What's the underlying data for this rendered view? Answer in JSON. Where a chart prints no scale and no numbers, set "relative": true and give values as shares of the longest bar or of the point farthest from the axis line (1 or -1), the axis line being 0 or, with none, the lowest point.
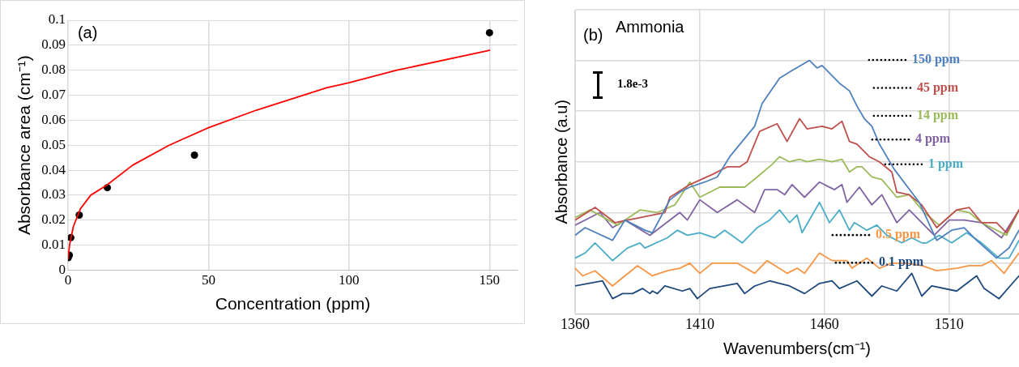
{
  "chart_data": [
    {
      "type": "scatter",
      "xlabel": "Concentration (ppm)",
      "ylabel": "Absorbance area (cm⁻¹)",
      "xlim": [
        0,
        160
      ],
      "ylim": [
        0,
        0.1
      ],
      "xticks": [
        0,
        50,
        100,
        150
      ],
      "yticks": [
        0,
        0.01,
        0.02,
        0.03,
        0.04,
        0.05,
        0.06,
        0.07,
        0.08,
        0.09,
        0.1
      ],
      "grid": true,
      "annotations": [
        "(a)"
      ],
      "series": [
        {
          "type": "scatter",
          "marker": "circle",
          "color": "#000000",
          "x": [
            0.1,
            0.5,
            1,
            4,
            14,
            45,
            150
          ],
          "values": [
            0.005,
            0.006,
            0.013,
            0.022,
            0.033,
            0.046,
            0.095
          ]
        },
        {
          "type": "line",
          "marker": "none",
          "color": "#ff0000",
          "x": [
            0,
            0.6,
            1.9,
            4.4,
            8.1,
            13.8,
            23,
            36,
            50,
            67,
            92,
            100,
            117,
            150
          ],
          "values": [
            0.0046,
            0.0103,
            0.0174,
            0.0245,
            0.03,
            0.034,
            0.042,
            0.05,
            0.057,
            0.064,
            0.073,
            0.075,
            0.08,
            0.088
          ]
        }
      ]
    },
    {
      "type": "line",
      "title": "Ammonia",
      "xlabel": "Wavenumbers(cm⁻¹)",
      "ylabel": "Absorbance (a.u)",
      "xlim": [
        1360,
        1538
      ],
      "xticks": [
        1360,
        1410,
        1460,
        1510
      ],
      "relative": true,
      "grid": true,
      "marker": "none",
      "annotations": [
        "(b)",
        "1.8e-3"
      ],
      "series": [
        {
          "name": "150 ppm",
          "color": "#4f81bd",
          "x": [
            1360,
            1364,
            1375,
            1380,
            1388,
            1391,
            1398,
            1402,
            1406,
            1412,
            1417,
            1422,
            1427,
            1432,
            1435,
            1442,
            1447,
            1454,
            1457,
            1459,
            1466,
            1470,
            1473,
            1476,
            1479,
            1482,
            1488,
            1498,
            1505,
            1511,
            1516,
            1521,
            1529,
            1534,
            1538
          ],
          "values": [
            0.31,
            0.34,
            0.29,
            0.37,
            0.33,
            0.32,
            0.45,
            0.48,
            0.5,
            0.52,
            0.54,
            0.62,
            0.68,
            0.74,
            0.83,
            0.93,
            0.96,
            1.0,
            0.97,
            0.98,
            0.91,
            0.88,
            0.82,
            0.77,
            0.74,
            0.67,
            0.57,
            0.44,
            0.29,
            0.33,
            0.34,
            0.29,
            0.22,
            0.26,
            0.33
          ]
        },
        {
          "name": "45 ppm",
          "color": "#c0504d",
          "x": [
            1360,
            1368,
            1376,
            1386,
            1396,
            1398,
            1406,
            1415,
            1421,
            1426,
            1429,
            1434,
            1441,
            1445,
            1450,
            1453,
            1459,
            1463,
            1467,
            1470,
            1473,
            1478,
            1482,
            1487,
            1489,
            1494,
            1499,
            1505,
            1513,
            1518,
            1523,
            1529,
            1533,
            1538
          ],
          "values": [
            0.37,
            0.42,
            0.36,
            0.38,
            0.4,
            0.46,
            0.51,
            0.55,
            0.58,
            0.58,
            0.6,
            0.72,
            0.75,
            0.68,
            0.77,
            0.73,
            0.74,
            0.73,
            0.76,
            0.68,
            0.67,
            0.62,
            0.6,
            0.56,
            0.48,
            0.47,
            0.43,
            0.34,
            0.41,
            0.42,
            0.36,
            0.36,
            0.32,
            0.41
          ]
        },
        {
          "name": "14 ppm",
          "color": "#9bbb59",
          "x": [
            1360,
            1366,
            1377,
            1386,
            1393,
            1400,
            1406,
            1410,
            1418,
            1428,
            1433,
            1439,
            1442,
            1446,
            1450,
            1453,
            1458,
            1463,
            1467,
            1470,
            1473,
            1475,
            1479,
            1483,
            1489,
            1494,
            1500,
            1506,
            1513,
            1518,
            1523,
            1533,
            1538
          ],
          "values": [
            0.38,
            0.41,
            0.35,
            0.41,
            0.4,
            0.43,
            0.52,
            0.46,
            0.5,
            0.5,
            0.54,
            0.59,
            0.62,
            0.6,
            0.61,
            0.6,
            0.61,
            0.6,
            0.61,
            0.56,
            0.58,
            0.58,
            0.54,
            0.53,
            0.46,
            0.47,
            0.4,
            0.35,
            0.41,
            0.4,
            0.36,
            0.31,
            0.41
          ]
        },
        {
          "name": "4 ppm",
          "color": "#8064a2",
          "x": [
            1360,
            1370,
            1375,
            1380,
            1390,
            1402,
            1405,
            1410,
            1417,
            1425,
            1432,
            1436,
            1441,
            1444,
            1447,
            1452,
            1458,
            1464,
            1467,
            1469,
            1474,
            1479,
            1483,
            1489,
            1494,
            1504,
            1510,
            1516,
            1523,
            1531,
            1538
          ],
          "values": [
            0.35,
            0.4,
            0.34,
            0.37,
            0.31,
            0.4,
            0.37,
            0.45,
            0.4,
            0.45,
            0.4,
            0.49,
            0.49,
            0.47,
            0.51,
            0.46,
            0.52,
            0.49,
            0.51,
            0.44,
            0.5,
            0.43,
            0.47,
            0.36,
            0.41,
            0.31,
            0.37,
            0.37,
            0.36,
            0.3,
            0.41
          ]
        },
        {
          "name": "1 ppm",
          "color": "#4bacc6",
          "x": [
            1360,
            1364,
            1368,
            1375,
            1381,
            1386,
            1388,
            1397,
            1401,
            1405,
            1410,
            1416,
            1420,
            1427,
            1433,
            1438,
            1442,
            1446,
            1449,
            1451,
            1458,
            1462,
            1466,
            1470,
            1472,
            1477,
            1481,
            1485,
            1491,
            1495,
            1499,
            1501,
            1506,
            1511,
            1517,
            1523,
            1530,
            1534,
            1538
          ],
          "values": [
            0.22,
            0.24,
            0.28,
            0.21,
            0.26,
            0.28,
            0.26,
            0.3,
            0.33,
            0.31,
            0.32,
            0.3,
            0.33,
            0.28,
            0.34,
            0.37,
            0.41,
            0.36,
            0.39,
            0.32,
            0.44,
            0.36,
            0.41,
            0.33,
            0.36,
            0.33,
            0.35,
            0.31,
            0.28,
            0.3,
            0.28,
            0.28,
            0.31,
            0.28,
            0.32,
            0.28,
            0.22,
            0.22,
            0.29
          ]
        },
        {
          "name": "0.5 ppm",
          "color": "#f79646",
          "x": [
            1360,
            1363,
            1368,
            1375,
            1385,
            1391,
            1397,
            1402,
            1406,
            1410,
            1415,
            1425,
            1432,
            1437,
            1445,
            1449,
            1452,
            1458,
            1463,
            1469,
            1471,
            1477,
            1482,
            1487,
            1493,
            1499,
            1505,
            1513,
            1518,
            1523,
            1527,
            1532,
            1538
          ],
          "values": [
            0.18,
            0.15,
            0.17,
            0.11,
            0.19,
            0.15,
            0.17,
            0.18,
            0.2,
            0.16,
            0.2,
            0.2,
            0.16,
            0.21,
            0.16,
            0.18,
            0.16,
            0.24,
            0.21,
            0.21,
            0.18,
            0.22,
            0.18,
            0.2,
            0.2,
            0.19,
            0.17,
            0.18,
            0.19,
            0.19,
            0.21,
            0.16,
            0.24
          ]
        },
        {
          "name": "0.1 ppm",
          "color": "#1f497d",
          "x": [
            1360,
            1371,
            1375,
            1379,
            1383,
            1387,
            1390,
            1391,
            1393,
            1396,
            1403,
            1406,
            1409,
            1414,
            1425,
            1428,
            1432,
            1438,
            1442,
            1446,
            1452,
            1458,
            1463,
            1466,
            1473,
            1479,
            1483,
            1489,
            1495,
            1499,
            1503,
            1513,
            1521,
            1524,
            1530,
            1538
          ],
          "values": [
            0.11,
            0.13,
            0.06,
            0.08,
            0.08,
            0.1,
            0.08,
            0.09,
            0.08,
            0.11,
            0.09,
            0.1,
            0.06,
            0.1,
            0.12,
            0.08,
            0.11,
            0.13,
            0.12,
            0.11,
            0.08,
            0.12,
            0.13,
            0.1,
            0.13,
            0.07,
            0.11,
            0.09,
            0.16,
            0.07,
            0.11,
            0.09,
            0.15,
            0.1,
            0.06,
            0.15
          ]
        }
      ]
    }
  ]
}
